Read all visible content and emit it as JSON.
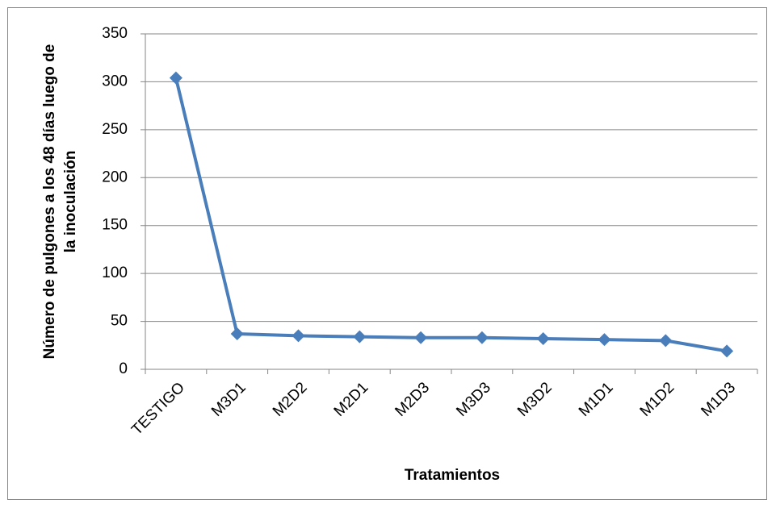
{
  "chart_data": {
    "type": "line",
    "x_label": "Tratamientos",
    "y_label": [
      "Número de pulgones a los 48 días luego de",
      "la inoculación"
    ],
    "categories": [
      "TESTIGO",
      "M3D1",
      "M2D2",
      "M2D1",
      "M2D3",
      "M3D3",
      "M3D2",
      "M1D1",
      "M1D2",
      "M1D3"
    ],
    "values": [
      304,
      37,
      35,
      34,
      33,
      33,
      32,
      31,
      30,
      19
    ],
    "color": "#4a7ebb",
    "ylim": [
      0,
      350
    ],
    "yticks": [
      0,
      50,
      100,
      150,
      200,
      250,
      300,
      350
    ],
    "grid": true
  }
}
